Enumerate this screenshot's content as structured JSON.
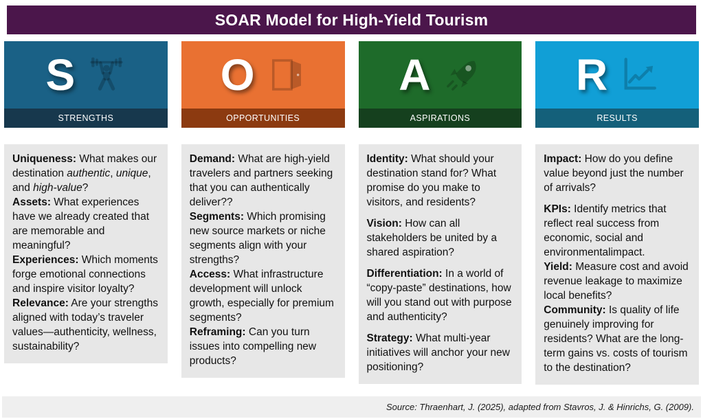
{
  "title": "SOAR Model for High-Yield Tourism",
  "colors": {
    "header_bg": "#4B164B",
    "box_bg": "#E7E7E7",
    "footer_bg": "#EFEFEF"
  },
  "columns": [
    {
      "letter": "S",
      "label": "STRENGTHS",
      "icon": "weightlifter-icon",
      "colors": {
        "block": "#1A6186",
        "band": "#17384D"
      },
      "items": [
        {
          "term": "Uniqueness:",
          "gap_after": false,
          "runs": [
            {
              "t": " What makes our destination "
            },
            {
              "t": "authentic",
              "i": true
            },
            {
              "t": ", "
            },
            {
              "t": "unique",
              "i": true
            },
            {
              "t": ", and "
            },
            {
              "t": "high-value",
              "i": true
            },
            {
              "t": "?"
            }
          ]
        },
        {
          "term": "Assets:",
          "gap_after": false,
          "runs": [
            {
              "t": " What experiences have we already created that are memorable and meaningful?"
            }
          ]
        },
        {
          "term": "Experiences:",
          "gap_after": false,
          "runs": [
            {
              "t": " Which moments forge emotional connections and inspire visitor loyalty?"
            }
          ]
        },
        {
          "term": "Relevance:",
          "gap_after": false,
          "runs": [
            {
              "t": " Are your strengths aligned with today’s traveler values—authenticity, wellness, sustainability?"
            }
          ]
        }
      ]
    },
    {
      "letter": "O",
      "label": "OPPORTUNITIES",
      "icon": "door-icon",
      "colors": {
        "block": "#E97132",
        "band": "#8C3A10"
      },
      "items": [
        {
          "term": "Demand:",
          "gap_after": false,
          "runs": [
            {
              "t": " What are high-yield travelers and partners seeking that you can authentically deliver??"
            }
          ]
        },
        {
          "term": "Segments:",
          "gap_after": false,
          "runs": [
            {
              "t": " Which promising new source markets or niche segments align with your strengths?"
            }
          ]
        },
        {
          "term": "Access:",
          "gap_after": false,
          "runs": [
            {
              "t": " What infrastructure development will unlock growth, especially for premium segments?"
            }
          ]
        },
        {
          "term": "Reframing:",
          "gap_after": false,
          "runs": [
            {
              "t": " Can you turn issues into compelling new products?"
            }
          ]
        }
      ]
    },
    {
      "letter": "A",
      "label": "ASPIRATIONS",
      "icon": "rocket-icon",
      "colors": {
        "block": "#1E6B2A",
        "band": "#15401E"
      },
      "items": [
        {
          "term": "Identity:",
          "gap_after": true,
          "runs": [
            {
              "t": " What should your destination stand for? What promise do you make to visitors, and residents?"
            }
          ]
        },
        {
          "term": "Vision:",
          "gap_after": true,
          "runs": [
            {
              "t": " How can all stakeholders be united by a shared aspiration?"
            }
          ]
        },
        {
          "term": "Differentiation:",
          "gap_after": true,
          "runs": [
            {
              "t": " In a world of “copy-paste” destinations, how will you stand out with purpose and authenticity?"
            }
          ]
        },
        {
          "term": "Strategy:",
          "gap_after": false,
          "runs": [
            {
              "t": " What multi-year initiatives will anchor your new positioning?"
            }
          ]
        }
      ]
    },
    {
      "letter": "R",
      "label": "RESULTS",
      "icon": "chart-up-icon",
      "colors": {
        "block": "#119FD6",
        "band": "#14607A"
      },
      "items": [
        {
          "term": "Impact:",
          "gap_after": true,
          "runs": [
            {
              "t": " How do you define value beyond just the number of arrivals?"
            }
          ]
        },
        {
          "term": "KPIs:",
          "gap_after": false,
          "runs": [
            {
              "t": " Identify metrics that reflect real success from economic, social and environmentalimpact."
            }
          ]
        },
        {
          "term": "Yield:",
          "gap_after": false,
          "runs": [
            {
              "t": " Measure cost and avoid revenue leakage to maximize local benefits?"
            }
          ]
        },
        {
          "term": "Community:",
          "gap_after": false,
          "runs": [
            {
              "t": " Is quality of life genuinely improving for residents? What are the long-term gains vs. costs of tourism to the destination?"
            }
          ]
        }
      ]
    }
  ],
  "footer": {
    "source": "Source: Thraenhart, J. (2025), adapted from Stavros, J. & Hinrichs, G. (2009)."
  }
}
